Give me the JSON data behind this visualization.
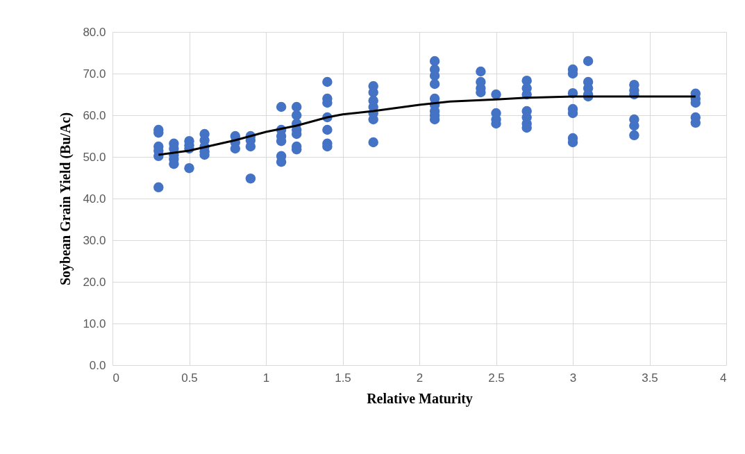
{
  "chart_data": {
    "type": "scatter",
    "xlabel": "Relative Maturity",
    "ylabel": "Soybean Grain Yield (Bu/Ac)",
    "xlim": [
      0,
      4
    ],
    "xticks": [
      0,
      0.5,
      1,
      1.5,
      2,
      2.5,
      3,
      3.5,
      4
    ],
    "ylim": [
      0,
      80
    ],
    "yticks": [
      {
        "value": 0,
        "label": "0.0"
      },
      {
        "value": 10,
        "label": "10.0"
      },
      {
        "value": 20,
        "label": "20.0"
      },
      {
        "value": 30,
        "label": "30.0"
      },
      {
        "value": 40,
        "label": "40.0"
      },
      {
        "value": 50,
        "label": "50.0"
      },
      {
        "value": 60,
        "label": "60.0"
      },
      {
        "value": 70,
        "label": "70.0"
      },
      {
        "value": 80,
        "label": "80.0"
      }
    ],
    "grid": true,
    "series": [
      {
        "marker": "circle",
        "color": "#4472c4",
        "x": [
          0.3,
          0.3,
          0.3,
          0.3,
          0.3,
          0.3,
          0.4,
          0.4,
          0.4,
          0.4,
          0.4,
          0.5,
          0.5,
          0.5,
          0.5,
          0.6,
          0.6,
          0.6,
          0.6,
          0.6,
          0.8,
          0.8,
          0.8,
          0.9,
          0.9,
          0.9,
          0.9,
          1.1,
          1.1,
          1.1,
          1.1,
          1.1,
          1.1,
          1.2,
          1.2,
          1.2,
          1.2,
          1.2,
          1.2,
          1.2,
          1.4,
          1.4,
          1.4,
          1.4,
          1.4,
          1.4,
          1.4,
          1.7,
          1.7,
          1.7,
          1.7,
          1.7,
          1.7,
          1.7,
          2.1,
          2.1,
          2.1,
          2.1,
          2.1,
          2.1,
          2.1,
          2.1,
          2.1,
          2.4,
          2.4,
          2.4,
          2.4,
          2.5,
          2.5,
          2.5,
          2.5,
          2.7,
          2.7,
          2.7,
          2.7,
          2.7,
          2.7,
          2.7,
          3.0,
          3.0,
          3.0,
          3.0,
          3.0,
          3.0,
          3.0,
          3.1,
          3.1,
          3.1,
          3.1,
          3.1,
          3.4,
          3.4,
          3.4,
          3.4,
          3.4,
          3.4,
          3.8,
          3.8,
          3.8,
          3.8,
          3.8
        ],
        "values": [
          56.5,
          55.8,
          52.5,
          51.5,
          50.2,
          42.7,
          53.2,
          52,
          50.5,
          49.5,
          48.3,
          53.8,
          52.8,
          52,
          47.3,
          55.5,
          54,
          52.5,
          51.3,
          50.5,
          55,
          53.5,
          52,
          55,
          54,
          52.5,
          44.8,
          62,
          56.5,
          55,
          53.8,
          50.2,
          48.8,
          62,
          60,
          58,
          56.5,
          55.5,
          52.5,
          51.8,
          68,
          64,
          63,
          59.5,
          56.5,
          53.2,
          52.5,
          67,
          65.5,
          63.5,
          62,
          60.5,
          59,
          53.5,
          73,
          71,
          69.5,
          67.5,
          64,
          62.5,
          61,
          60,
          59,
          70.5,
          68,
          66.5,
          65.5,
          65,
          60.5,
          59,
          58,
          68.3,
          66.5,
          65,
          61,
          59.5,
          58,
          57,
          71,
          70,
          65.3,
          61.5,
          60.5,
          54.5,
          53.5,
          73,
          68,
          66.5,
          65,
          64.5,
          67.3,
          66,
          65,
          59,
          57.5,
          55.2,
          65.2,
          64,
          63,
          59.5,
          58.2
        ]
      },
      {
        "type": "line",
        "color": "#000000",
        "x": [
          0.3,
          0.5,
          0.8,
          1.0,
          1.2,
          1.4,
          1.5,
          1.7,
          2.0,
          2.2,
          2.5,
          2.7,
          3.0,
          3.8
        ],
        "values": [
          50.5,
          51.5,
          54,
          56,
          57.5,
          59.5,
          60.2,
          61,
          62.5,
          63.3,
          63.8,
          64.2,
          64.5,
          64.5
        ]
      }
    ]
  }
}
